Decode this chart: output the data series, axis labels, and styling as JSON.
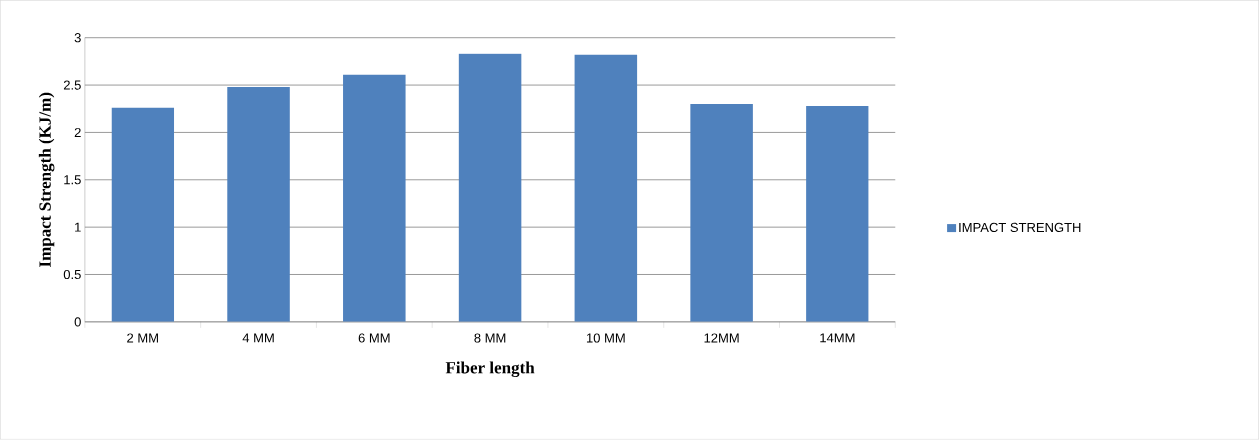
{
  "chart_data": {
    "type": "bar",
    "xlabel": "Fiber length",
    "ylabel": "Impact Strength  (KJ/m)",
    "categories": [
      "2 MM",
      "4 MM",
      "6 MM",
      "8 MM",
      "10 MM",
      "12MM",
      "14MM"
    ],
    "series": [
      {
        "name": "IMPACT STRENGTH",
        "color": "#4f81bd",
        "values": [
          2.26,
          2.48,
          2.61,
          2.83,
          2.82,
          2.3,
          2.28
        ]
      }
    ],
    "ylim": [
      0,
      3
    ],
    "yticks": [
      0,
      0.5,
      1,
      1.5,
      2,
      2.5,
      3
    ],
    "grid": "y",
    "legend": "right"
  }
}
